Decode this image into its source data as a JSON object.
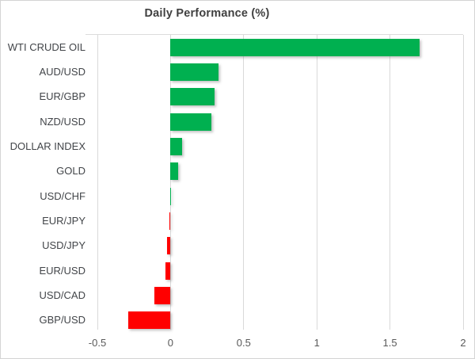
{
  "chart_data": {
    "type": "bar",
    "orientation": "horizontal",
    "title": "Daily Performance (%)",
    "categories": [
      "WTI CRUDE OIL",
      "AUD/USD",
      "EUR/GBP",
      "NZD/USD",
      "DOLLAR INDEX",
      "GOLD",
      "USD/CHF",
      "EUR/JPY",
      "USD/JPY",
      "EUR/USD",
      "USD/CAD",
      "GBP/USD"
    ],
    "values": [
      1.7,
      0.33,
      0.3,
      0.28,
      0.08,
      0.05,
      0.005,
      -0.01,
      -0.025,
      -0.035,
      -0.11,
      -0.29
    ],
    "xlim": [
      -0.5,
      2
    ],
    "x_ticks": [
      -0.5,
      0,
      0.5,
      1,
      1.5,
      2
    ],
    "x_tick_labels": [
      "-0.5",
      "0",
      "0.5",
      "1",
      "1.5",
      "2"
    ],
    "xlabel": "",
    "ylabel": "",
    "grid": true,
    "legend": false,
    "positive_color": "#00b050",
    "negative_color": "#ff0000",
    "gridline_color": "#d9d9d9",
    "title_color": "#404040",
    "category_label_color": "#424549",
    "tick_label_color": "#595959",
    "background_color": "#ffffff"
  }
}
